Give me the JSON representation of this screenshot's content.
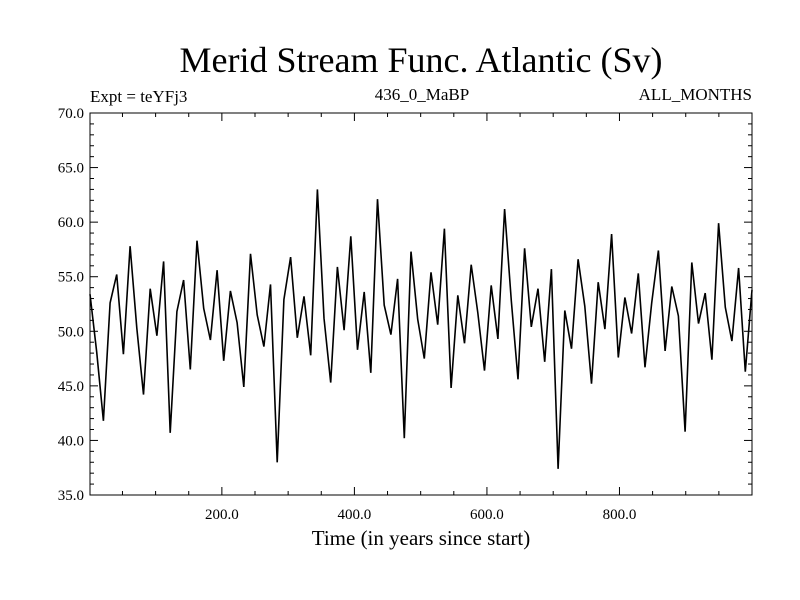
{
  "chart_data": {
    "type": "line",
    "title": "Merid Stream Func. Atlantic (Sv)",
    "subtitle_left": "Expt = teYFj3",
    "subtitle_center": "436_0_MaBP",
    "subtitle_right": "ALL_MONTHS",
    "xlabel": "Time (in years since start)",
    "ylabel": "",
    "xlim": [
      1,
      1000
    ],
    "ylim": [
      35.0,
      70.0
    ],
    "x_ticks": [
      200,
      400,
      600,
      800
    ],
    "x_tick_labels": [
      "200.0",
      "400.0",
      "600.0",
      "800.0"
    ],
    "y_ticks": [
      35,
      40,
      45,
      50,
      55,
      60,
      65,
      70
    ],
    "y_tick_labels": [
      "35.0",
      "40.0",
      "45.0",
      "50.0",
      "55.0",
      "60.0",
      "65.0",
      "70.0"
    ],
    "grid": false,
    "series": [
      {
        "name": "Merid Stream Func. Atlantic",
        "color": "#000000",
        "values": [
          53.4,
          48.1,
          41.8,
          52.6,
          55.2,
          47.9,
          57.8,
          50.3,
          44.2,
          53.9,
          49.6,
          56.4,
          40.7,
          51.8,
          54.7,
          46.5,
          58.3,
          52.1,
          49.2,
          55.6,
          47.3,
          53.7,
          50.8,
          44.9,
          57.1,
          51.5,
          48.6,
          54.3,
          38.0,
          52.9,
          56.8,
          49.4,
          53.2,
          47.8,
          63.0,
          51.2,
          45.3,
          55.9,
          50.1,
          58.7,
          48.3,
          53.6,
          46.2,
          62.1,
          52.4,
          49.7,
          54.8,
          40.2,
          57.3,
          51.1,
          47.5,
          55.4,
          50.6,
          59.4,
          44.8,
          53.3,
          48.9,
          56.1,
          51.7,
          46.4,
          54.2,
          49.3,
          61.2,
          52.8,
          45.6,
          57.6,
          50.4,
          53.9,
          47.2,
          55.7,
          37.4,
          51.9,
          48.4,
          56.6,
          52.3,
          45.2,
          54.5,
          50.2,
          58.9,
          47.6,
          53.1,
          49.8,
          55.3,
          46.7,
          52.6,
          57.4,
          48.2,
          54.1,
          51.4,
          40.8,
          56.3,
          50.7,
          53.5,
          47.4,
          59.9,
          52.2,
          49.1,
          55.8,
          46.3,
          53.8
        ]
      }
    ]
  }
}
